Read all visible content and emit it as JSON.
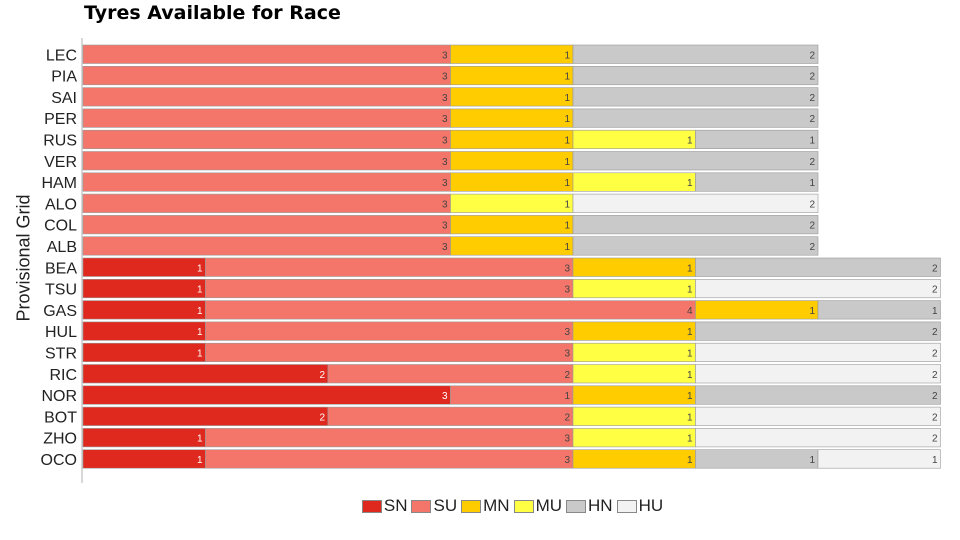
{
  "chart_data": {
    "type": "bar",
    "orientation": "horizontal",
    "stacked": true,
    "title": "Tyres Available for Race",
    "ylabel": "Provisional Grid",
    "xlabel": "",
    "categories": [
      "LEC",
      "PIA",
      "SAI",
      "PER",
      "RUS",
      "VER",
      "HAM",
      "ALO",
      "COL",
      "ALB",
      "BEA",
      "TSU",
      "GAS",
      "HUL",
      "STR",
      "RIC",
      "NOR",
      "BOT",
      "ZHO",
      "OCO"
    ],
    "series": [
      {
        "name": "SN",
        "color": "#e0291e",
        "values": [
          0,
          0,
          0,
          0,
          0,
          0,
          0,
          0,
          0,
          0,
          1,
          1,
          1,
          1,
          1,
          2,
          3,
          2,
          1,
          1
        ]
      },
      {
        "name": "SU",
        "color": "#f4766a",
        "values": [
          3,
          3,
          3,
          3,
          3,
          3,
          3,
          3,
          3,
          3,
          3,
          3,
          4,
          3,
          3,
          2,
          1,
          2,
          3,
          3
        ]
      },
      {
        "name": "MN",
        "color": "#ffcc00",
        "values": [
          1,
          1,
          1,
          1,
          1,
          1,
          1,
          0,
          1,
          1,
          1,
          0,
          1,
          1,
          0,
          0,
          1,
          0,
          0,
          1
        ]
      },
      {
        "name": "MU",
        "color": "#ffff44",
        "values": [
          0,
          0,
          0,
          0,
          1,
          0,
          1,
          1,
          0,
          0,
          0,
          1,
          0,
          0,
          1,
          1,
          0,
          1,
          1,
          0
        ]
      },
      {
        "name": "HN",
        "color": "#c9c9c9",
        "values": [
          2,
          2,
          2,
          2,
          1,
          2,
          1,
          0,
          2,
          2,
          2,
          0,
          1,
          2,
          0,
          0,
          2,
          0,
          0,
          1
        ]
      },
      {
        "name": "HU",
        "color": "#f2f2f2",
        "values": [
          0,
          0,
          0,
          0,
          0,
          0,
          0,
          2,
          0,
          0,
          0,
          2,
          0,
          0,
          2,
          2,
          0,
          2,
          2,
          1
        ]
      }
    ],
    "xlim": [
      0,
      7
    ],
    "grid": false,
    "legend": "bottom"
  }
}
